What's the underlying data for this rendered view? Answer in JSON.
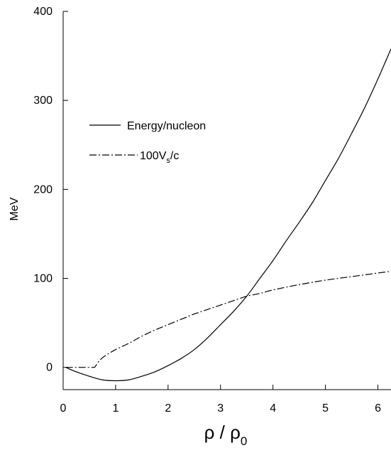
{
  "chart_data": {
    "type": "line",
    "title": "",
    "ylabel": "MeV",
    "xlabel": {
      "main": "ρ / ρ",
      "sub": "0"
    },
    "xlim": [
      0,
      6.25
    ],
    "ylim": [
      -25,
      400
    ],
    "xticks": [
      "0",
      "1",
      "2",
      "3",
      "4",
      "5",
      "6"
    ],
    "yticks": [
      "0",
      "100",
      "200",
      "300",
      "400"
    ],
    "grid": false,
    "legend_position": "upper-left",
    "series": [
      {
        "name": "Energy/nucleon",
        "style": "solid",
        "points": [
          [
            0.05,
            0
          ],
          [
            0.25,
            -5
          ],
          [
            0.5,
            -10
          ],
          [
            0.75,
            -14
          ],
          [
            1.0,
            -15
          ],
          [
            1.25,
            -14
          ],
          [
            1.5,
            -10
          ],
          [
            1.75,
            -5
          ],
          [
            2.0,
            2
          ],
          [
            2.25,
            10
          ],
          [
            2.5,
            20
          ],
          [
            2.75,
            33
          ],
          [
            3.0,
            48
          ],
          [
            3.25,
            63
          ],
          [
            3.5,
            80
          ],
          [
            3.75,
            100
          ],
          [
            4.0,
            120
          ],
          [
            4.25,
            142
          ],
          [
            4.5,
            163
          ],
          [
            4.75,
            185
          ],
          [
            5.0,
            210
          ],
          [
            5.25,
            235
          ],
          [
            5.5,
            263
          ],
          [
            5.75,
            292
          ],
          [
            6.0,
            324
          ],
          [
            6.25,
            358
          ]
        ]
      },
      {
        "name_parts": {
          "pre": "100V",
          "sub": "s",
          "post": "/c"
        },
        "style": "dashdot",
        "points": [
          [
            0.05,
            0
          ],
          [
            0.3,
            0
          ],
          [
            0.6,
            0
          ],
          [
            0.7,
            8
          ],
          [
            0.8,
            13
          ],
          [
            1.0,
            20
          ],
          [
            1.25,
            27
          ],
          [
            1.5,
            35
          ],
          [
            1.75,
            42
          ],
          [
            2.0,
            48
          ],
          [
            2.25,
            54
          ],
          [
            2.5,
            60
          ],
          [
            2.75,
            65
          ],
          [
            3.0,
            70
          ],
          [
            3.25,
            75
          ],
          [
            3.5,
            80
          ],
          [
            3.75,
            83
          ],
          [
            4.0,
            87
          ],
          [
            4.5,
            93
          ],
          [
            5.0,
            98
          ],
          [
            5.5,
            102
          ],
          [
            6.0,
            106
          ],
          [
            6.25,
            108
          ]
        ]
      }
    ]
  }
}
